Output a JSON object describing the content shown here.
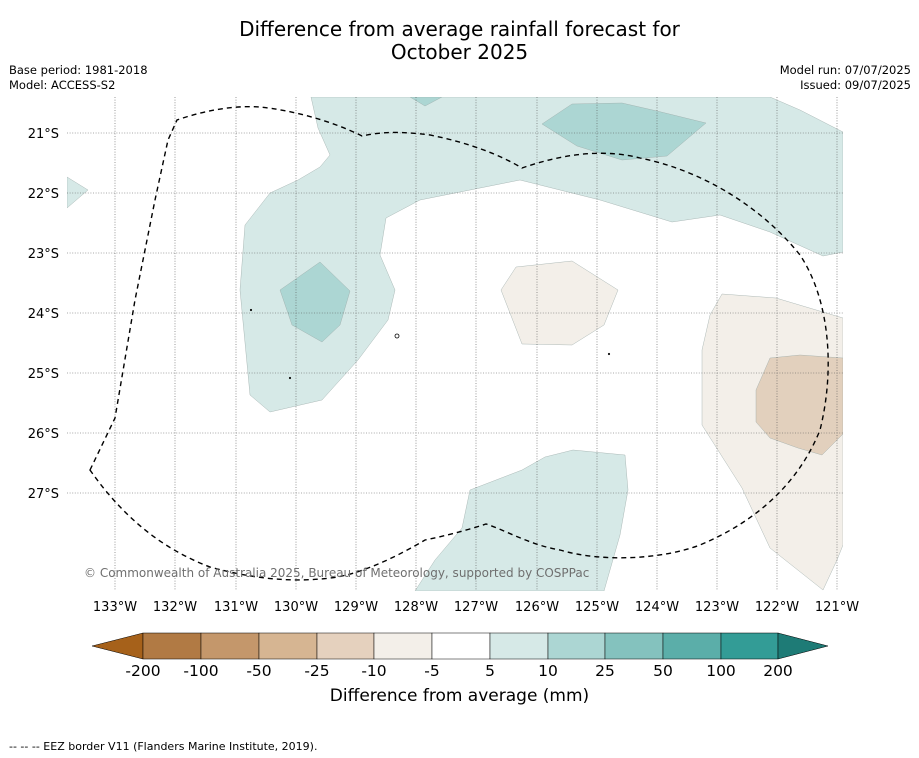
{
  "title": {
    "line1": "Difference from average rainfall forecast for",
    "line2": "October 2025"
  },
  "meta_left": {
    "base_period": "Base period: 1981-2018",
    "model": "Model: ACCESS-S2"
  },
  "meta_right": {
    "model_run": "Model run: 07/07/2025",
    "issued": "Issued: 09/07/2025"
  },
  "map": {
    "lat_labels": [
      "21°S",
      "22°S",
      "23°S",
      "24°S",
      "25°S",
      "26°S",
      "27°S"
    ],
    "lon_labels": [
      "133°W",
      "132°W",
      "131°W",
      "130°W",
      "129°W",
      "128°W",
      "127°W",
      "126°W",
      "125°W",
      "124°W",
      "123°W",
      "122°W",
      "121°W"
    ],
    "copyright": "© Commonwealth of Australia 2025, Bureau of Meteorology, supported by COSPPac",
    "eez_line_style": "dashed",
    "grid": "dotted"
  },
  "colorbar": {
    "tick_labels": [
      "-200",
      "-100",
      "-50",
      "-25",
      "-10",
      "-5",
      "5",
      "10",
      "25",
      "50",
      "100",
      "200"
    ],
    "colors": [
      "#a6611a",
      "#b17a44",
      "#c4976b",
      "#d6b592",
      "#e5d1be",
      "#f3efe9",
      "#ffffff",
      "#d6e9e7",
      "#acd6d3",
      "#84c2be",
      "#5baea9",
      "#339c96",
      "#1e7b76"
    ],
    "label": "Difference from average (mm)"
  },
  "footer": {
    "eez_legend": "--  --  -- EEZ border V11 (Flanders Marine Institute, 2019)."
  }
}
